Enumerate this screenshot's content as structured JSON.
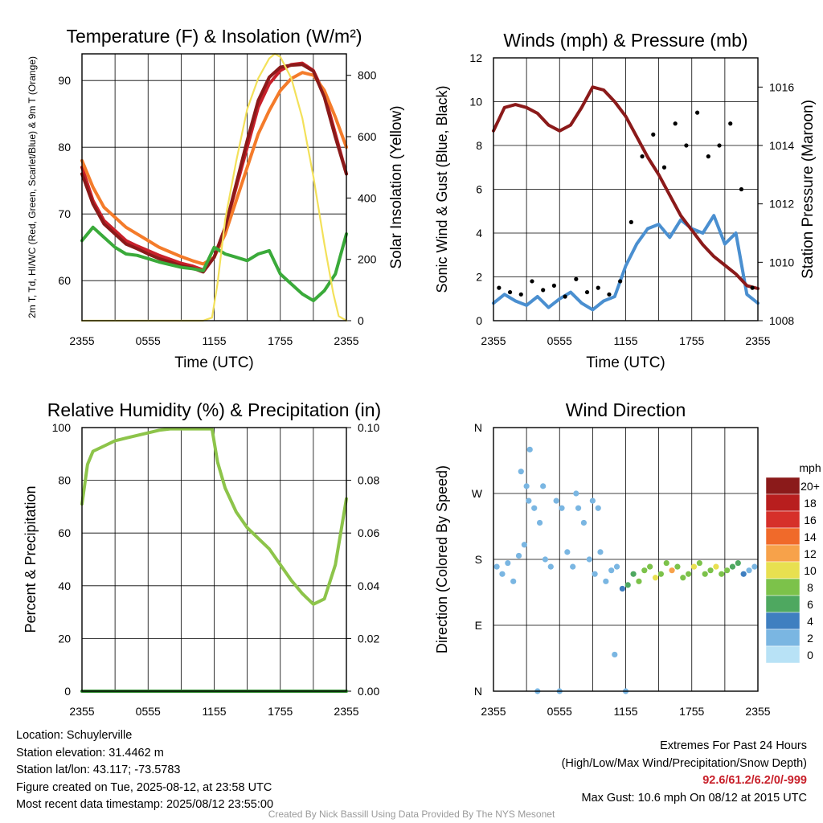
{
  "footer": {
    "location": "Location: Schuylerville",
    "elevation": "Station elevation: 31.4462 m",
    "latlon": "Station lat/lon: 43.117; -73.5783",
    "created": "Figure created on Tue, 2025-08-12, at 23:58 UTC",
    "recent": "Most recent data timestamp: 2025/08/12 23:55:00",
    "extremes_title": "Extremes For Past 24 Hours",
    "extremes_sub": "(High/Low/Max Wind/Precipitation/Snow Depth)",
    "extremes_values": "92.6/61.2/6.2/0/-999",
    "max_gust": "Max Gust: 10.6 mph On 08/12 at 2015 UTC",
    "credit": "Created By Nick Bassill Using Data Provided By The NYS Mesonet"
  },
  "chart_data": [
    {
      "type": "line",
      "title": "Temperature (F) & Insolation (W/m²)",
      "xlabel": "Time (UTC)",
      "ylabel": "2m T, Td, HI/WC (Red, Green, Scarlet/Blue) & 9m T (Orange)",
      "ylabel_right": "Solar Insolation (Yellow)",
      "x_ticks": [
        "2355",
        "0555",
        "1155",
        "1755",
        "2355"
      ],
      "y_ticks": [
        60,
        70,
        80,
        90
      ],
      "ylim": [
        54,
        94
      ],
      "y2_ticks": [
        0,
        200,
        400,
        600,
        800
      ],
      "y2lim": [
        0,
        870
      ],
      "series": [
        {
          "color": "#c8202a",
          "x": [
            0,
            1,
            2,
            3,
            4,
            5,
            6,
            7,
            8,
            9,
            10,
            11,
            12,
            13,
            14,
            15,
            16,
            17,
            18,
            19,
            20,
            21,
            22,
            23,
            24
          ],
          "y": [
            77,
            72,
            69,
            67.5,
            66,
            65.2,
            64.5,
            63.8,
            63.2,
            62.6,
            62.2,
            61.6,
            63.5,
            68,
            74,
            80,
            86,
            89.5,
            91.5,
            92.4,
            92.6,
            91.5,
            88,
            82,
            76
          ]
        },
        {
          "color": "#f47b2a",
          "x": [
            0,
            1,
            2,
            3,
            4,
            5,
            6,
            7,
            8,
            9,
            10,
            11,
            12,
            13,
            14,
            15,
            16,
            17,
            18,
            19,
            20,
            21,
            22,
            23,
            24
          ],
          "y": [
            78,
            74,
            71,
            69.5,
            68,
            67,
            66,
            65,
            64.3,
            63.6,
            63,
            62.5,
            63.5,
            67,
            72,
            77,
            82,
            85.5,
            88.5,
            90.3,
            91.2,
            90.8,
            88.5,
            84.5,
            80
          ]
        },
        {
          "color": "#8b1a1a",
          "x": [
            0,
            1,
            2,
            3,
            4,
            5,
            6,
            7,
            8,
            9,
            10,
            11,
            12,
            13,
            14,
            15,
            16,
            17,
            18,
            19,
            20,
            21,
            22,
            23,
            24
          ],
          "y": [
            76,
            71.5,
            68.5,
            67,
            65.5,
            64.8,
            64,
            63.3,
            62.8,
            62.2,
            61.9,
            61.3,
            63.5,
            68,
            74.5,
            81,
            87,
            90.5,
            92,
            92.3,
            92.4,
            91.4,
            87.5,
            81.5,
            76
          ]
        },
        {
          "color": "#3aaa3a",
          "x": [
            0,
            1,
            2,
            3,
            4,
            5,
            6,
            7,
            8,
            9,
            10,
            11,
            12,
            13,
            14,
            15,
            16,
            17,
            18,
            19,
            20,
            21,
            22,
            23,
            24
          ],
          "y": [
            66,
            68,
            66.5,
            65,
            64,
            63.8,
            63.3,
            62.8,
            62.4,
            62,
            61.8,
            61.5,
            65,
            64,
            63.5,
            63,
            64,
            64.5,
            61,
            59.5,
            58,
            57,
            58.5,
            61,
            67
          ]
        },
        {
          "color": "#f3e15a",
          "axis": "right",
          "x": [
            0,
            2,
            4,
            6,
            8,
            10,
            11,
            11.8,
            12.3,
            13,
            14,
            15,
            16,
            17,
            17.5,
            18,
            19,
            20,
            21,
            22,
            22.8,
            23.3,
            24
          ],
          "y": [
            0,
            0,
            0,
            0,
            0,
            0,
            0,
            10,
            120,
            330,
            520,
            690,
            790,
            855,
            870,
            860,
            790,
            660,
            470,
            250,
            90,
            15,
            0
          ]
        }
      ]
    },
    {
      "type": "line",
      "title": "Winds (mph) & Pressure (mb)",
      "xlabel": "Time (UTC)",
      "ylabel": "Sonic Wind & Gust (Blue, Black)",
      "ylabel_right": "Station Pressure (Maroon)",
      "x_ticks": [
        "2355",
        "0555",
        "1155",
        "1755",
        "2355"
      ],
      "y_ticks": [
        0,
        2,
        4,
        6,
        8,
        10,
        12
      ],
      "ylim": [
        0,
        12
      ],
      "y2_ticks": [
        1008,
        1010,
        1012,
        1014,
        1016
      ],
      "y2lim": [
        1008,
        1017
      ],
      "series": [
        {
          "color": "#4a8fd0",
          "x": [
            0,
            1,
            2,
            3,
            4,
            5,
            6,
            7,
            8,
            9,
            10,
            11,
            12,
            13,
            14,
            15,
            16,
            17,
            18,
            19,
            20,
            21,
            22,
            23,
            24
          ],
          "y": [
            0.8,
            1.2,
            0.9,
            0.7,
            1.1,
            0.6,
            1.0,
            1.3,
            0.8,
            0.5,
            0.9,
            1.1,
            2.5,
            3.5,
            4.2,
            4.4,
            3.8,
            4.6,
            4.2,
            4.0,
            4.8,
            3.5,
            4.0,
            1.2,
            0.8
          ]
        },
        {
          "color": "#8b1a1a",
          "axis": "right",
          "x": [
            0,
            1,
            2,
            3,
            4,
            5,
            6,
            7,
            8,
            9,
            10,
            11,
            12,
            13,
            14,
            15,
            16,
            17,
            18,
            19,
            20,
            21,
            22,
            23,
            24
          ],
          "y": [
            1014.5,
            1015.3,
            1015.4,
            1015.3,
            1015.1,
            1014.7,
            1014.5,
            1014.7,
            1015.3,
            1016.0,
            1015.9,
            1015.5,
            1015.0,
            1014.3,
            1013.6,
            1013.0,
            1012.3,
            1011.6,
            1011.1,
            1010.6,
            1010.2,
            1009.9,
            1009.6,
            1009.2,
            1009.1
          ]
        },
        {
          "color": "#000000",
          "style": "dots",
          "x": [
            0.5,
            1.5,
            2.5,
            3.5,
            4.5,
            5.5,
            6.5,
            7.5,
            8.5,
            9.5,
            10.5,
            11.5,
            12.5,
            13.5,
            14.5,
            15.5,
            16.5,
            17.5,
            18.5,
            19.5,
            20.5,
            21.5,
            22.5,
            23.5
          ],
          "y": [
            1.5,
            1.3,
            1.2,
            1.8,
            1.4,
            1.6,
            1.1,
            1.9,
            1.3,
            1.5,
            1.2,
            1.8,
            4.5,
            7.5,
            8.5,
            7.0,
            9.0,
            8.0,
            9.5,
            7.5,
            8.0,
            9.0,
            6.0,
            1.5
          ]
        }
      ]
    },
    {
      "type": "line",
      "title": "Relative Humidity (%) & Precipitation (in)",
      "ylabel": "Percent & Precipitation",
      "x_ticks": [
        "2355",
        "0555",
        "1155",
        "1755",
        "2355"
      ],
      "y_ticks": [
        0,
        20,
        40,
        60,
        80,
        100
      ],
      "ylim": [
        0,
        100
      ],
      "y2_ticks": [
        "0.00",
        "0.02",
        "0.04",
        "0.06",
        "0.08",
        "0.10"
      ],
      "y2lim": [
        0,
        0.1
      ],
      "series": [
        {
          "color": "#8dc44a",
          "x": [
            0,
            0.5,
            1,
            2,
            3,
            4,
            5,
            6,
            7,
            8,
            9,
            10,
            11,
            11.8,
            12.3,
            13,
            14,
            15,
            16,
            17,
            18,
            19,
            20,
            21,
            22,
            23,
            24
          ],
          "y": [
            71,
            86,
            91,
            93,
            95,
            96,
            97,
            98,
            99,
            99.5,
            99.5,
            99.5,
            99.5,
            99.5,
            87,
            77,
            68,
            62,
            58,
            54,
            48,
            42,
            37,
            33,
            35,
            48,
            73
          ]
        },
        {
          "color": "#2e8b2e",
          "x": [
            0,
            24
          ],
          "y": [
            0,
            0
          ]
        }
      ]
    },
    {
      "type": "scatter",
      "title": "Wind Direction",
      "ylabel": "Direction (Colored By Speed)",
      "x_ticks": [
        "2355",
        "0555",
        "1155",
        "1755",
        "2355"
      ],
      "y_ticks": [
        "N",
        "E",
        "S",
        "W",
        "N"
      ],
      "ylim": [
        0,
        360
      ],
      "legend_title": "mph",
      "legend_labels": [
        "20+",
        "18",
        "16",
        "14",
        "12",
        "10",
        "8",
        "6",
        "4",
        "2",
        "0"
      ],
      "legend_colors": [
        "#8b1a1a",
        "#b81e1e",
        "#d6302a",
        "#f06a2a",
        "#f7a24a",
        "#e8e050",
        "#7cc24a",
        "#4ea860",
        "#3f7fc0",
        "#7ab6e2",
        "#b8e2f6"
      ],
      "x": [
        0.3,
        0.8,
        1.3,
        1.8,
        2.3,
        2.8,
        3.2,
        3.7,
        4.2,
        4.7,
        5.2,
        5.7,
        6.2,
        6.7,
        7.2,
        7.7,
        8.2,
        8.7,
        9.2,
        9.7,
        10.2,
        10.7,
        11.2,
        11.7,
        12.2,
        12.7,
        13.2,
        13.7,
        14.2,
        14.7,
        15.2,
        15.7,
        16.2,
        16.7,
        17.2,
        17.7,
        18.2,
        18.7,
        19.2,
        19.7,
        20.2,
        20.7,
        21.2,
        21.7,
        22.2,
        22.7,
        23.2,
        23.7,
        2.5,
        3.0,
        4.5,
        7.5,
        9.0,
        9.5,
        11.0,
        12.0,
        4.0,
        6.0,
        3.3
      ],
      "y": [
        170,
        160,
        175,
        150,
        185,
        200,
        260,
        250,
        230,
        180,
        170,
        260,
        250,
        190,
        170,
        250,
        230,
        180,
        160,
        190,
        150,
        165,
        170,
        140,
        145,
        160,
        150,
        165,
        170,
        155,
        160,
        175,
        165,
        170,
        155,
        160,
        170,
        175,
        160,
        165,
        170,
        160,
        165,
        170,
        175,
        160,
        165,
        170,
        300,
        280,
        280,
        270,
        260,
        250,
        50,
        0,
        0,
        0,
        330
      ],
      "speed": [
        1,
        1,
        1,
        1,
        1,
        1,
        1,
        1,
        1,
        1,
        1,
        1,
        1,
        1,
        1,
        1,
        1,
        1,
        1,
        1,
        1,
        1,
        1,
        2,
        3,
        3,
        4,
        4,
        4,
        5,
        4,
        4,
        6,
        4,
        4,
        4,
        5,
        4,
        4,
        4,
        5,
        4,
        4,
        3,
        3,
        2,
        1,
        1,
        1,
        1,
        1,
        1,
        1,
        1,
        1,
        1,
        1,
        1,
        1
      ]
    }
  ]
}
